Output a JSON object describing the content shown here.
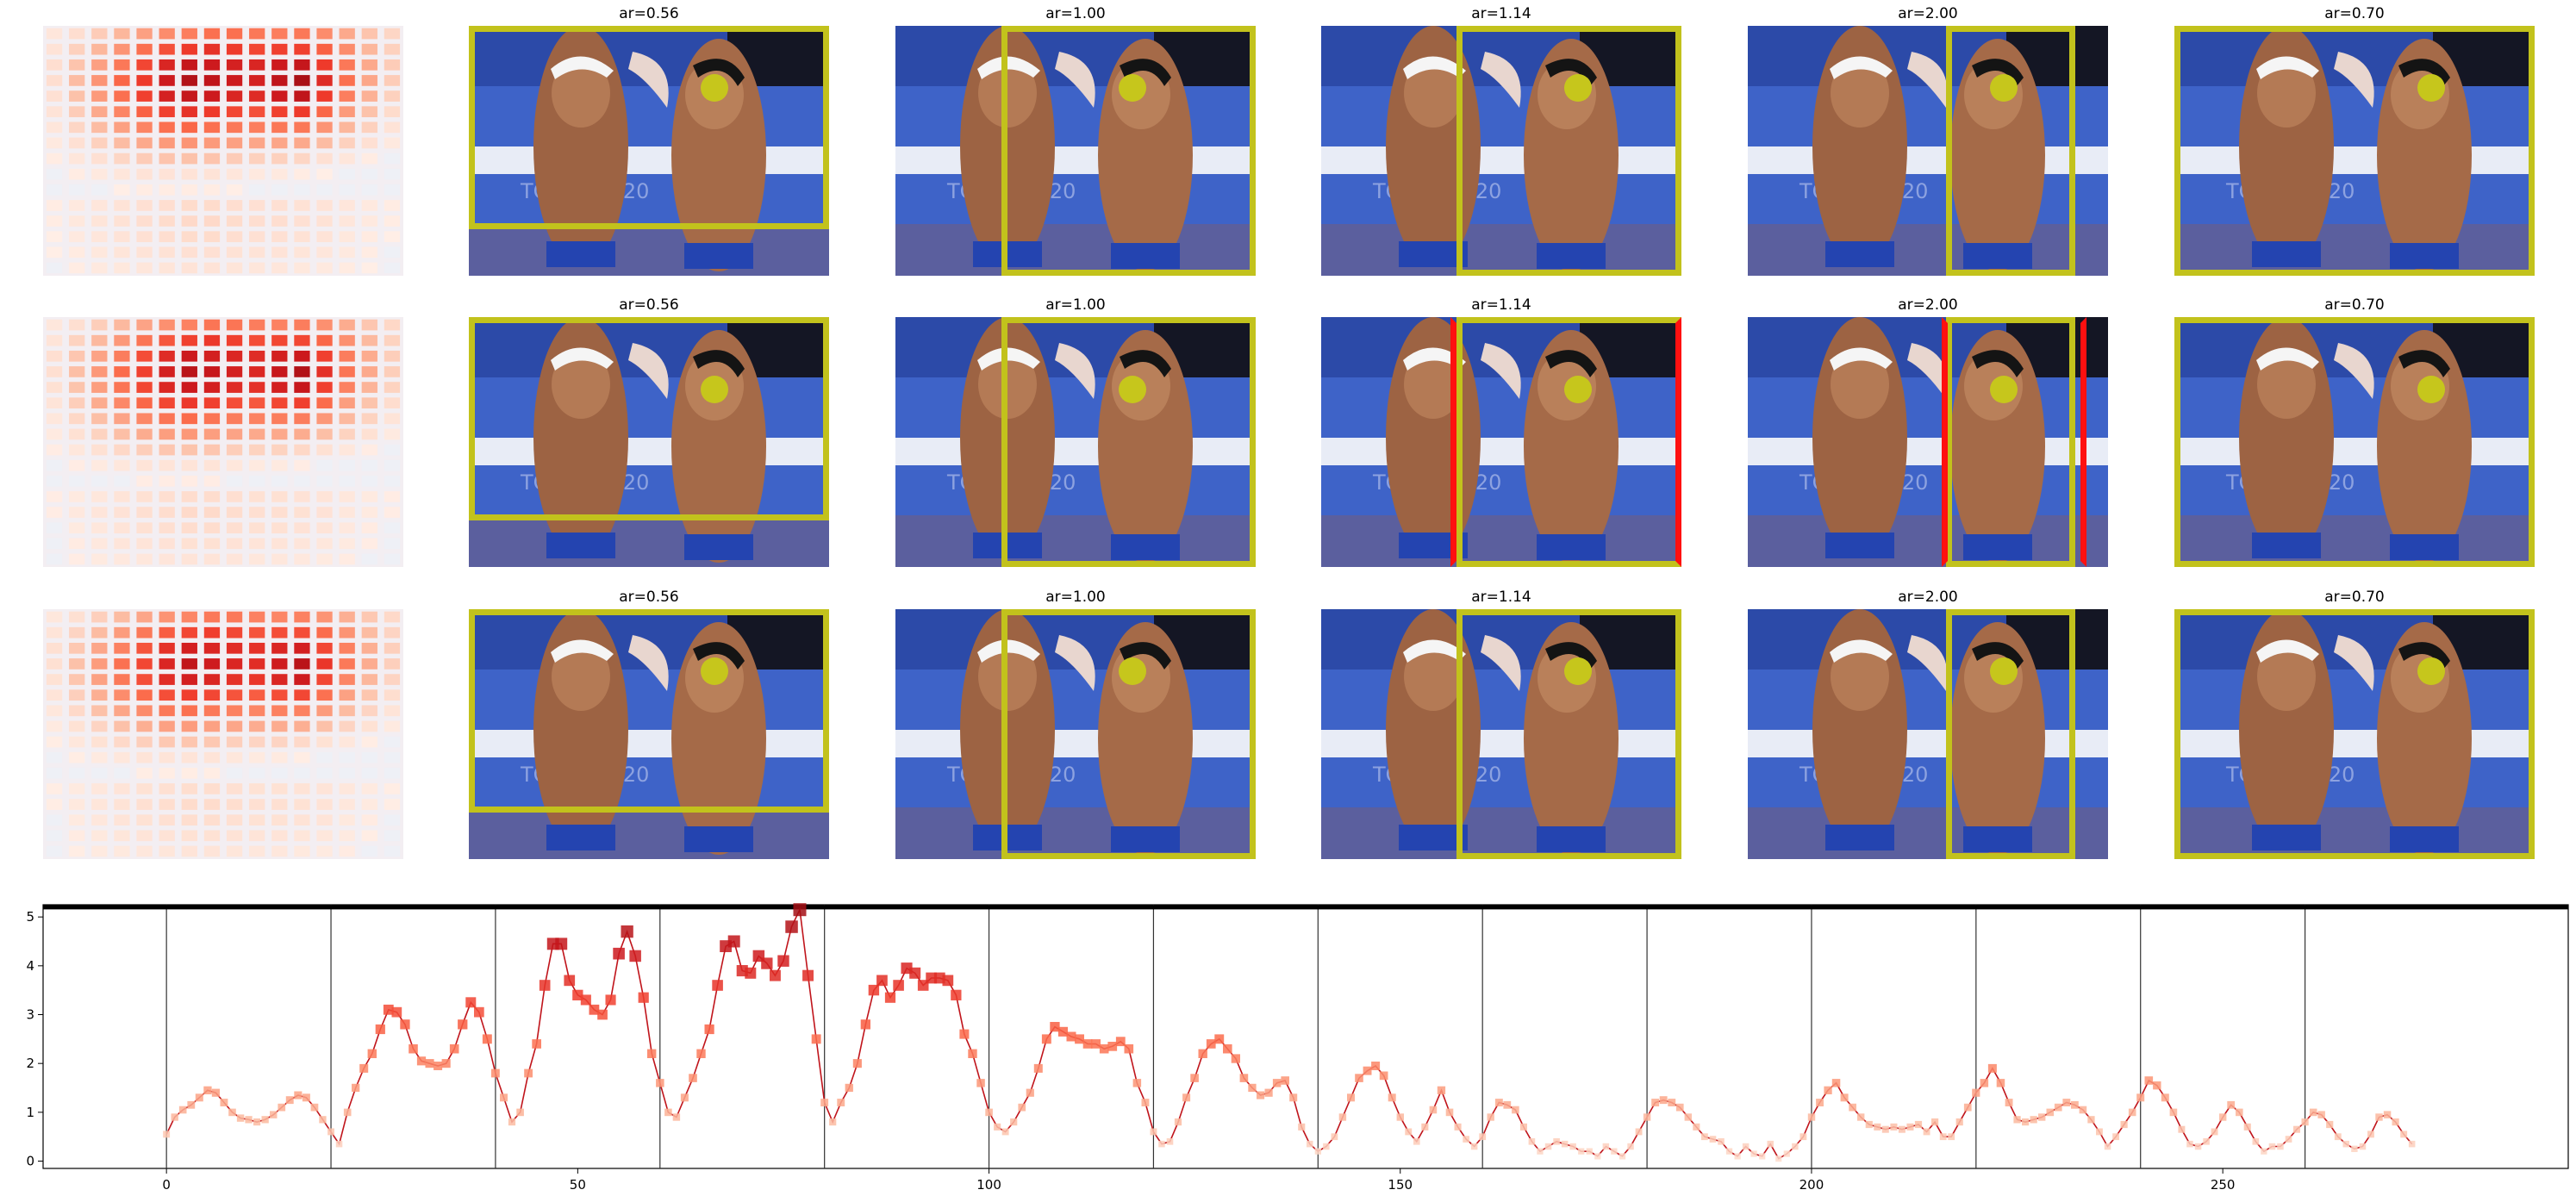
{
  "panel_grid": {
    "rows": 3,
    "columns": [
      {
        "title": "ar=0.56"
      },
      {
        "title": "ar=1.00"
      },
      {
        "title": "ar=1.14"
      },
      {
        "title": "ar=2.00"
      },
      {
        "title": "ar=0.70"
      }
    ],
    "photo_caption": "TOKYO 2020",
    "colors": {
      "crop_box": "#c2c21c",
      "alt_crop_box": "#ff1010",
      "face_marker": "#c6c61c",
      "heat": "#a50f15"
    }
  },
  "heatmap": {
    "type": "heatmap",
    "colormap": "Reds",
    "grid": [
      16,
      16
    ],
    "values": [
      [
        0.1,
        0.15,
        0.22,
        0.3,
        0.38,
        0.45,
        0.5,
        0.55,
        0.55,
        0.52,
        0.5,
        0.52,
        0.45,
        0.35,
        0.25,
        0.18
      ],
      [
        0.12,
        0.2,
        0.3,
        0.42,
        0.55,
        0.65,
        0.72,
        0.75,
        0.72,
        0.68,
        0.7,
        0.7,
        0.6,
        0.45,
        0.3,
        0.2
      ],
      [
        0.15,
        0.25,
        0.38,
        0.52,
        0.68,
        0.8,
        0.88,
        0.85,
        0.82,
        0.8,
        0.85,
        0.88,
        0.72,
        0.52,
        0.35,
        0.22
      ],
      [
        0.15,
        0.28,
        0.42,
        0.58,
        0.72,
        0.85,
        0.95,
        0.9,
        0.85,
        0.82,
        0.9,
        0.98,
        0.78,
        0.55,
        0.36,
        0.22
      ],
      [
        0.14,
        0.26,
        0.4,
        0.55,
        0.7,
        0.82,
        0.88,
        0.85,
        0.8,
        0.78,
        0.85,
        0.9,
        0.72,
        0.5,
        0.32,
        0.2
      ],
      [
        0.12,
        0.22,
        0.35,
        0.48,
        0.6,
        0.7,
        0.75,
        0.72,
        0.68,
        0.65,
        0.7,
        0.72,
        0.58,
        0.4,
        0.26,
        0.16
      ],
      [
        0.1,
        0.18,
        0.28,
        0.38,
        0.48,
        0.55,
        0.58,
        0.55,
        0.52,
        0.5,
        0.52,
        0.52,
        0.42,
        0.3,
        0.2,
        0.12
      ],
      [
        0.08,
        0.14,
        0.2,
        0.28,
        0.35,
        0.4,
        0.42,
        0.4,
        0.38,
        0.36,
        0.36,
        0.35,
        0.28,
        0.2,
        0.14,
        0.08
      ],
      [
        0.06,
        0.1,
        0.14,
        0.18,
        0.22,
        0.25,
        0.26,
        0.25,
        0.22,
        0.2,
        0.2,
        0.18,
        0.14,
        0.1,
        0.06,
        0.04
      ],
      [
        0.04,
        0.06,
        0.08,
        0.1,
        0.12,
        0.12,
        0.12,
        0.12,
        0.1,
        0.08,
        0.08,
        0.06,
        0.05,
        0.04,
        0.02,
        0.02
      ],
      [
        0.02,
        0.03,
        0.04,
        0.05,
        0.06,
        0.06,
        0.06,
        0.06,
        0.05,
        0.04,
        0.03,
        0.03,
        0.02,
        0.02,
        0.01,
        0.01
      ],
      [
        0.06,
        0.08,
        0.1,
        0.12,
        0.14,
        0.15,
        0.16,
        0.16,
        0.15,
        0.14,
        0.14,
        0.13,
        0.12,
        0.1,
        0.08,
        0.06
      ],
      [
        0.06,
        0.09,
        0.11,
        0.13,
        0.15,
        0.16,
        0.17,
        0.17,
        0.16,
        0.15,
        0.15,
        0.14,
        0.13,
        0.1,
        0.08,
        0.06
      ],
      [
        0.05,
        0.08,
        0.1,
        0.12,
        0.14,
        0.15,
        0.16,
        0.16,
        0.15,
        0.14,
        0.14,
        0.13,
        0.12,
        0.09,
        0.07,
        0.05
      ],
      [
        0.05,
        0.07,
        0.09,
        0.11,
        0.12,
        0.13,
        0.14,
        0.14,
        0.13,
        0.12,
        0.12,
        0.11,
        0.1,
        0.08,
        0.06,
        0.04
      ],
      [
        0.04,
        0.06,
        0.08,
        0.09,
        0.1,
        0.11,
        0.12,
        0.12,
        0.11,
        0.1,
        0.1,
        0.09,
        0.08,
        0.07,
        0.05,
        0.04
      ]
    ]
  },
  "chart_data": {
    "type": "line",
    "xlim": [
      -15,
      292
    ],
    "ylim": [
      -0.15,
      5.25
    ],
    "xticks": [
      "0",
      "50",
      "100",
      "150",
      "200",
      "250"
    ],
    "yticks": [
      "0",
      "1",
      "2",
      "3",
      "4",
      "5"
    ],
    "reference_line_y": 5.2,
    "group_boundaries_x": [
      0,
      20,
      40,
      60,
      80,
      100,
      120,
      140,
      160,
      180,
      200,
      220,
      240,
      260
    ],
    "marker": "square",
    "series": [
      {
        "values": [
          0.55,
          0.9,
          1.05,
          1.15,
          1.3,
          1.45,
          1.4,
          1.2,
          1.0,
          0.88,
          0.85,
          0.8,
          0.85,
          0.95,
          1.1,
          1.25,
          1.35,
          1.3,
          1.1,
          0.85,
          0.6,
          0.35,
          1.0,
          1.5,
          1.9,
          2.2,
          2.7,
          3.1,
          3.05,
          2.8,
          2.3,
          2.05,
          2.0,
          1.95,
          2.0,
          2.3,
          2.8,
          3.25,
          3.05,
          2.5,
          1.8,
          1.3,
          0.8,
          1.0,
          1.8,
          2.4,
          3.6,
          4.45,
          4.45,
          3.7,
          3.4,
          3.3,
          3.1,
          3.0,
          3.3,
          4.25,
          4.7,
          4.2,
          3.35,
          2.2,
          1.6,
          1.0,
          0.9,
          1.3,
          1.7,
          2.2,
          2.7,
          3.6,
          4.4,
          4.5,
          3.9,
          3.85,
          4.2,
          4.05,
          3.8,
          4.1,
          4.8,
          5.15,
          3.8,
          2.5,
          1.2,
          0.8,
          1.2,
          1.5,
          2.0,
          2.8,
          3.5,
          3.7,
          3.35,
          3.6,
          3.95,
          3.85,
          3.6,
          3.75,
          3.75,
          3.7,
          3.4,
          2.6,
          2.2,
          1.6,
          1.0,
          0.7,
          0.6,
          0.8,
          1.1,
          1.4,
          1.9,
          2.5,
          2.75,
          2.65,
          2.55,
          2.5,
          2.4,
          2.4,
          2.3,
          2.35,
          2.45,
          2.3,
          1.6,
          1.2,
          0.6,
          0.35,
          0.4,
          0.8,
          1.3,
          1.7,
          2.2,
          2.4,
          2.5,
          2.3,
          2.1,
          1.7,
          1.5,
          1.35,
          1.4,
          1.6,
          1.65,
          1.3,
          0.7,
          0.35,
          0.2,
          0.3,
          0.5,
          0.9,
          1.3,
          1.7,
          1.85,
          1.95,
          1.75,
          1.3,
          0.9,
          0.6,
          0.4,
          0.7,
          1.05,
          1.45,
          1.0,
          0.7,
          0.45,
          0.3,
          0.5,
          0.9,
          1.2,
          1.15,
          1.05,
          0.7,
          0.4,
          0.2,
          0.3,
          0.4,
          0.35,
          0.3,
          0.2,
          0.2,
          0.1,
          0.3,
          0.2,
          0.1,
          0.3,
          0.6,
          0.9,
          1.2,
          1.25,
          1.2,
          1.1,
          0.9,
          0.7,
          0.5,
          0.45,
          0.4,
          0.2,
          0.1,
          0.3,
          0.15,
          0.1,
          0.35,
          0.05,
          0.15,
          0.3,
          0.5,
          0.9,
          1.2,
          1.45,
          1.6,
          1.3,
          1.1,
          0.9,
          0.75,
          0.7,
          0.65,
          0.7,
          0.65,
          0.7,
          0.75,
          0.6,
          0.8,
          0.5,
          0.5,
          0.8,
          1.1,
          1.4,
          1.6,
          1.9,
          1.6,
          1.2,
          0.85,
          0.8,
          0.85,
          0.9,
          1.0,
          1.1,
          1.2,
          1.15,
          1.05,
          0.85,
          0.6,
          0.3,
          0.5,
          0.75,
          1.0,
          1.3,
          1.65,
          1.55,
          1.3,
          1.0,
          0.65,
          0.35,
          0.3,
          0.4,
          0.6,
          0.9,
          1.15,
          1.0,
          0.7,
          0.4,
          0.2,
          0.3,
          0.3,
          0.45,
          0.65,
          0.8,
          1.0,
          0.95,
          0.75,
          0.5,
          0.35,
          0.25,
          0.3,
          0.55,
          0.9,
          0.95,
          0.8,
          0.55,
          0.35
        ]
      }
    ]
  }
}
